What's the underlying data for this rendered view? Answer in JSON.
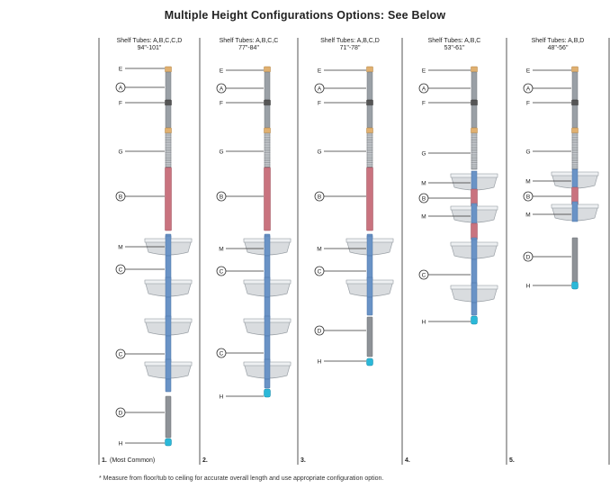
{
  "title": "Multiple Height Configurations Options: See Below",
  "footnote": "* Measure from floor/tub to ceiling for accurate overall length and use appropriate configuration option.",
  "colors": {
    "chrome": "#9aa0a6",
    "red_tube": "#c9737f",
    "blue_tube": "#6a93c6",
    "gray_tube": "#8e9297",
    "foot": "#2bb8d8",
    "top_cap": "#e0b070",
    "shelf": "#d9dcdf",
    "line": "#333333"
  },
  "configs": [
    {
      "header": "Shelf Tubes: A,B,C,C,D",
      "range": "94\"-101\"",
      "number": "1.",
      "note": "(Most Common)",
      "labels": [
        {
          "t": "E"
        },
        {
          "t": "A",
          "c": true
        },
        {
          "t": "F"
        },
        {
          "t": "G"
        },
        {
          "t": "B",
          "c": true
        },
        {
          "t": "M"
        },
        {
          "t": "C",
          "c": true
        },
        {
          "t": "C",
          "c": true
        },
        {
          "t": "D",
          "c": true
        },
        {
          "t": "H"
        }
      ]
    },
    {
      "header": "Shelf Tubes: A,B,C,C",
      "range": "77\"-84\"",
      "number": "2.",
      "note": "",
      "labels": [
        {
          "t": "E"
        },
        {
          "t": "A",
          "c": true
        },
        {
          "t": "F"
        },
        {
          "t": "G"
        },
        {
          "t": "B",
          "c": true
        },
        {
          "t": "M"
        },
        {
          "t": "C",
          "c": true
        },
        {
          "t": "C",
          "c": true
        },
        {
          "t": "H"
        }
      ]
    },
    {
      "header": "Shelf Tubes: A,B,C,D",
      "range": "71\"-78\"",
      "number": "3.",
      "note": "",
      "labels": [
        {
          "t": "E"
        },
        {
          "t": "A",
          "c": true
        },
        {
          "t": "F"
        },
        {
          "t": "G"
        },
        {
          "t": "B",
          "c": true
        },
        {
          "t": "M"
        },
        {
          "t": "C",
          "c": true
        },
        {
          "t": "D",
          "c": true
        },
        {
          "t": "H"
        }
      ]
    },
    {
      "header": "Shelf Tubes: A,B,C",
      "range": "53\"-61\"",
      "number": "4.",
      "note": "",
      "labels": [
        {
          "t": "E"
        },
        {
          "t": "A",
          "c": true
        },
        {
          "t": "F"
        },
        {
          "t": "G"
        },
        {
          "t": "M"
        },
        {
          "t": "B",
          "c": true
        },
        {
          "t": "M"
        },
        {
          "t": "C",
          "c": true
        },
        {
          "t": "H"
        }
      ]
    },
    {
      "header": "Shelf Tubes: A,B,D",
      "range": "48\"-56\"",
      "number": "5.",
      "note": "",
      "labels": [
        {
          "t": "E"
        },
        {
          "t": "A",
          "c": true
        },
        {
          "t": "F"
        },
        {
          "t": "G"
        },
        {
          "t": "M"
        },
        {
          "t": "B",
          "c": true
        },
        {
          "t": "M"
        },
        {
          "t": "D",
          "c": true
        },
        {
          "t": "H"
        }
      ]
    }
  ]
}
